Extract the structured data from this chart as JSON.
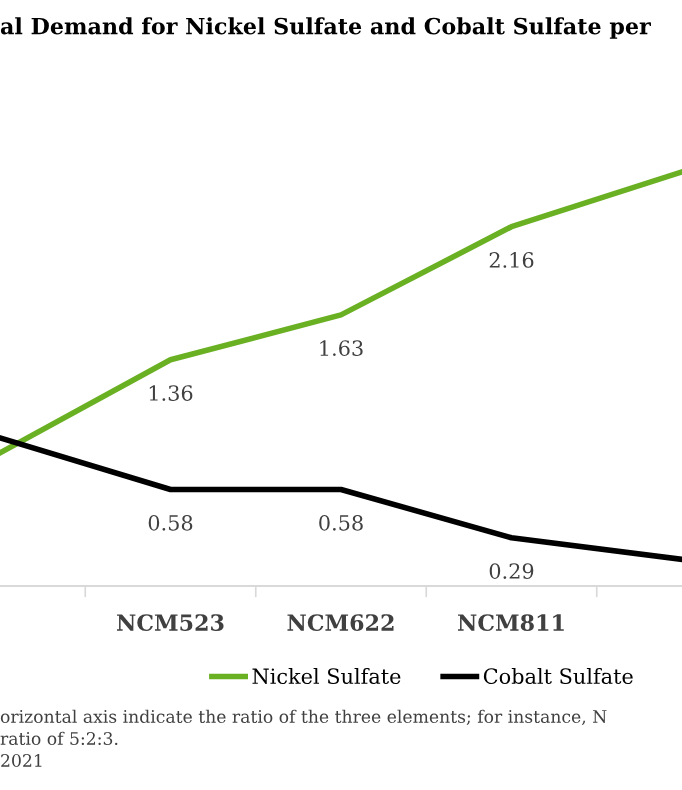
{
  "chart_data": {
    "type": "line",
    "title": "al Demand for Nickel Sulfate and Cobalt Sulfate per",
    "categories": [
      null,
      "NCM523",
      "NCM622",
      "NCM811",
      null
    ],
    "series": [
      {
        "name": "Nickel Sulfate",
        "color": "#6ab023",
        "values": [
          0.8,
          1.36,
          1.63,
          2.16,
          2.49
        ],
        "value_labels": [
          null,
          "1.36",
          "1.63",
          "2.16",
          null
        ]
      },
      {
        "name": "Cobalt Sulfate",
        "color": "#000000",
        "values": [
          0.89,
          0.58,
          0.58,
          0.29,
          0.16
        ],
        "value_labels": [
          null,
          "0.58",
          "0.58",
          "0.29",
          null
        ]
      }
    ],
    "legend": "bottom",
    "grid": false,
    "marker": "none",
    "line_style": "solid",
    "annotations": [
      "orizontal axis indicate the ratio of the three elements; for instance, N",
      "ratio of 5:2:3.",
      "2021"
    ]
  }
}
